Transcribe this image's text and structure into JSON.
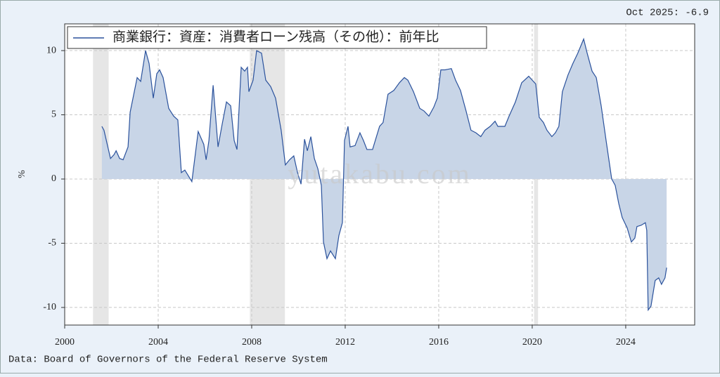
{
  "chart_data": {
    "type": "area-line",
    "annotation": "Oct 2025: -6.9",
    "legend_label": "商業銀行：資産：消費者ローン残高（その他）：前年比",
    "ylabel": "%",
    "source": "Data: Board of Governors of the Federal Reserve System",
    "watermark": "yutakabu.com",
    "line_color": "#2b529c",
    "fill_color": "#c8d5e7",
    "recession_color": "#e6e6e6",
    "grid": true,
    "legend": "upper left",
    "xlim": [
      2000,
      2026.95
    ],
    "ylim": [
      -11.37,
      12.08
    ],
    "xticks": [
      2000,
      2004,
      2008,
      2012,
      2016,
      2020,
      2024
    ],
    "yticks": [
      -10,
      -5,
      0,
      5,
      10
    ],
    "recessions": [
      [
        2001.21,
        2001.88
      ],
      [
        2007.92,
        2009.42
      ],
      [
        2020.08,
        2020.25
      ]
    ],
    "x": [
      2001.59,
      2001.68,
      2001.96,
      2002.11,
      2002.2,
      2002.35,
      2002.5,
      2002.71,
      2002.8,
      2003.1,
      2003.25,
      2003.46,
      2003.61,
      2003.79,
      2003.94,
      2004.06,
      2004.21,
      2004.45,
      2004.66,
      2004.84,
      2004.99,
      2005.14,
      2005.44,
      2005.71,
      2005.95,
      2006.05,
      2006.17,
      2006.35,
      2006.56,
      2006.74,
      2006.92,
      2007.1,
      2007.25,
      2007.37,
      2007.55,
      2007.7,
      2007.82,
      2007.88,
      2008.06,
      2008.21,
      2008.42,
      2008.6,
      2008.81,
      2009.02,
      2009.26,
      2009.44,
      2009.62,
      2009.8,
      2009.96,
      2010.11,
      2010.26,
      2010.38,
      2010.53,
      2010.68,
      2010.83,
      2010.98,
      2011.07,
      2011.22,
      2011.37,
      2011.58,
      2011.73,
      2011.88,
      2011.97,
      2012.12,
      2012.21,
      2012.42,
      2012.63,
      2012.78,
      2012.93,
      2013.17,
      2013.47,
      2013.62,
      2013.83,
      2014.08,
      2014.32,
      2014.53,
      2014.68,
      2014.92,
      2015.19,
      2015.37,
      2015.58,
      2015.79,
      2015.94,
      2016.09,
      2016.27,
      2016.54,
      2016.72,
      2016.93,
      2017.17,
      2017.38,
      2017.59,
      2017.8,
      2017.98,
      2018.2,
      2018.41,
      2018.53,
      2018.83,
      2019.01,
      2019.28,
      2019.55,
      2019.85,
      2020.0,
      2020.15,
      2020.3,
      2020.48,
      2020.63,
      2020.84,
      2020.99,
      2021.14,
      2021.29,
      2021.53,
      2021.74,
      2021.95,
      2022.2,
      2022.35,
      2022.56,
      2022.74,
      2022.95,
      2023.16,
      2023.4,
      2023.55,
      2023.7,
      2023.85,
      2024.06,
      2024.24,
      2024.39,
      2024.48,
      2024.66,
      2024.84,
      2024.9,
      2024.96,
      2025.08,
      2025.26,
      2025.41,
      2025.53,
      2025.68,
      2025.75
    ],
    "values": [
      4.1,
      3.8,
      1.6,
      1.9,
      2.2,
      1.6,
      1.5,
      2.5,
      5.2,
      7.9,
      7.6,
      10.0,
      9.0,
      6.3,
      8.2,
      8.5,
      7.9,
      5.5,
      4.9,
      4.6,
      0.5,
      0.7,
      -0.2,
      3.7,
      2.7,
      1.5,
      3.0,
      7.3,
      2.5,
      4.3,
      6.0,
      5.7,
      3.0,
      2.3,
      8.7,
      8.4,
      8.7,
      6.8,
      7.7,
      10.0,
      9.8,
      7.7,
      7.2,
      6.3,
      3.8,
      1.1,
      1.5,
      1.8,
      0.5,
      -0.4,
      3.1,
      2.2,
      3.3,
      1.6,
      0.8,
      -0.5,
      -4.9,
      -6.2,
      -5.6,
      -6.2,
      -4.4,
      -3.4,
      3.0,
      4.1,
      2.5,
      2.6,
      3.6,
      3.0,
      2.3,
      2.3,
      4.1,
      4.4,
      6.6,
      6.9,
      7.5,
      7.9,
      7.7,
      6.8,
      5.5,
      5.3,
      4.9,
      5.6,
      6.3,
      8.5,
      8.5,
      8.6,
      7.7,
      6.9,
      5.3,
      3.8,
      3.6,
      3.3,
      3.8,
      4.1,
      4.5,
      4.1,
      4.1,
      4.9,
      6.0,
      7.5,
      8.0,
      7.7,
      7.4,
      4.8,
      4.4,
      3.8,
      3.3,
      3.6,
      4.1,
      6.8,
      8.1,
      9.0,
      9.8,
      10.9,
      9.8,
      8.4,
      7.9,
      5.7,
      3.0,
      0.0,
      -0.5,
      -1.9,
      -3.0,
      -3.8,
      -4.9,
      -4.6,
      -3.7,
      -3.6,
      -3.4,
      -4.0,
      -10.2,
      -9.9,
      -7.9,
      -7.7,
      -8.2,
      -7.7,
      -6.9
    ]
  }
}
